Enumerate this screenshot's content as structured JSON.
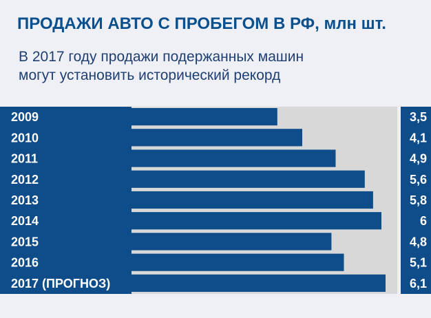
{
  "title": "ПРОДАЖИ АВТО С ПРОБЕГОМ В РФ, млн шт.",
  "subtitle_lines": [
    "В 2017 году продажи подержанных машин",
    "могут установить исторический рекорд"
  ],
  "colors": {
    "bar": "#0f4c8a",
    "panel": "#d8d8d8",
    "title": "#0b4f8c",
    "subtitle": "#1f3f73",
    "background": "#eef0f6"
  },
  "chart_data": {
    "type": "bar",
    "orientation": "horizontal",
    "title": "ПРОДАЖИ АВТО С ПРОБЕГОМ В РФ, млн шт.",
    "subtitle": "В 2017 году продажи подержанных машин могут установить исторический рекорд",
    "categories": [
      "2009",
      "2010",
      "2011",
      "2012",
      "2013",
      "2014",
      "2015",
      "2016",
      "2017 (ПРОГНОЗ)"
    ],
    "values": [
      3.5,
      4.1,
      4.9,
      5.6,
      5.8,
      6,
      4.8,
      5.1,
      6.1
    ],
    "value_labels": [
      "3,5",
      "4,1",
      "4,9",
      "5,6",
      "5,8",
      "6",
      "4,8",
      "5,1",
      "6,1"
    ],
    "xlabel": "",
    "ylabel": "",
    "grid": false,
    "legend": "none"
  }
}
